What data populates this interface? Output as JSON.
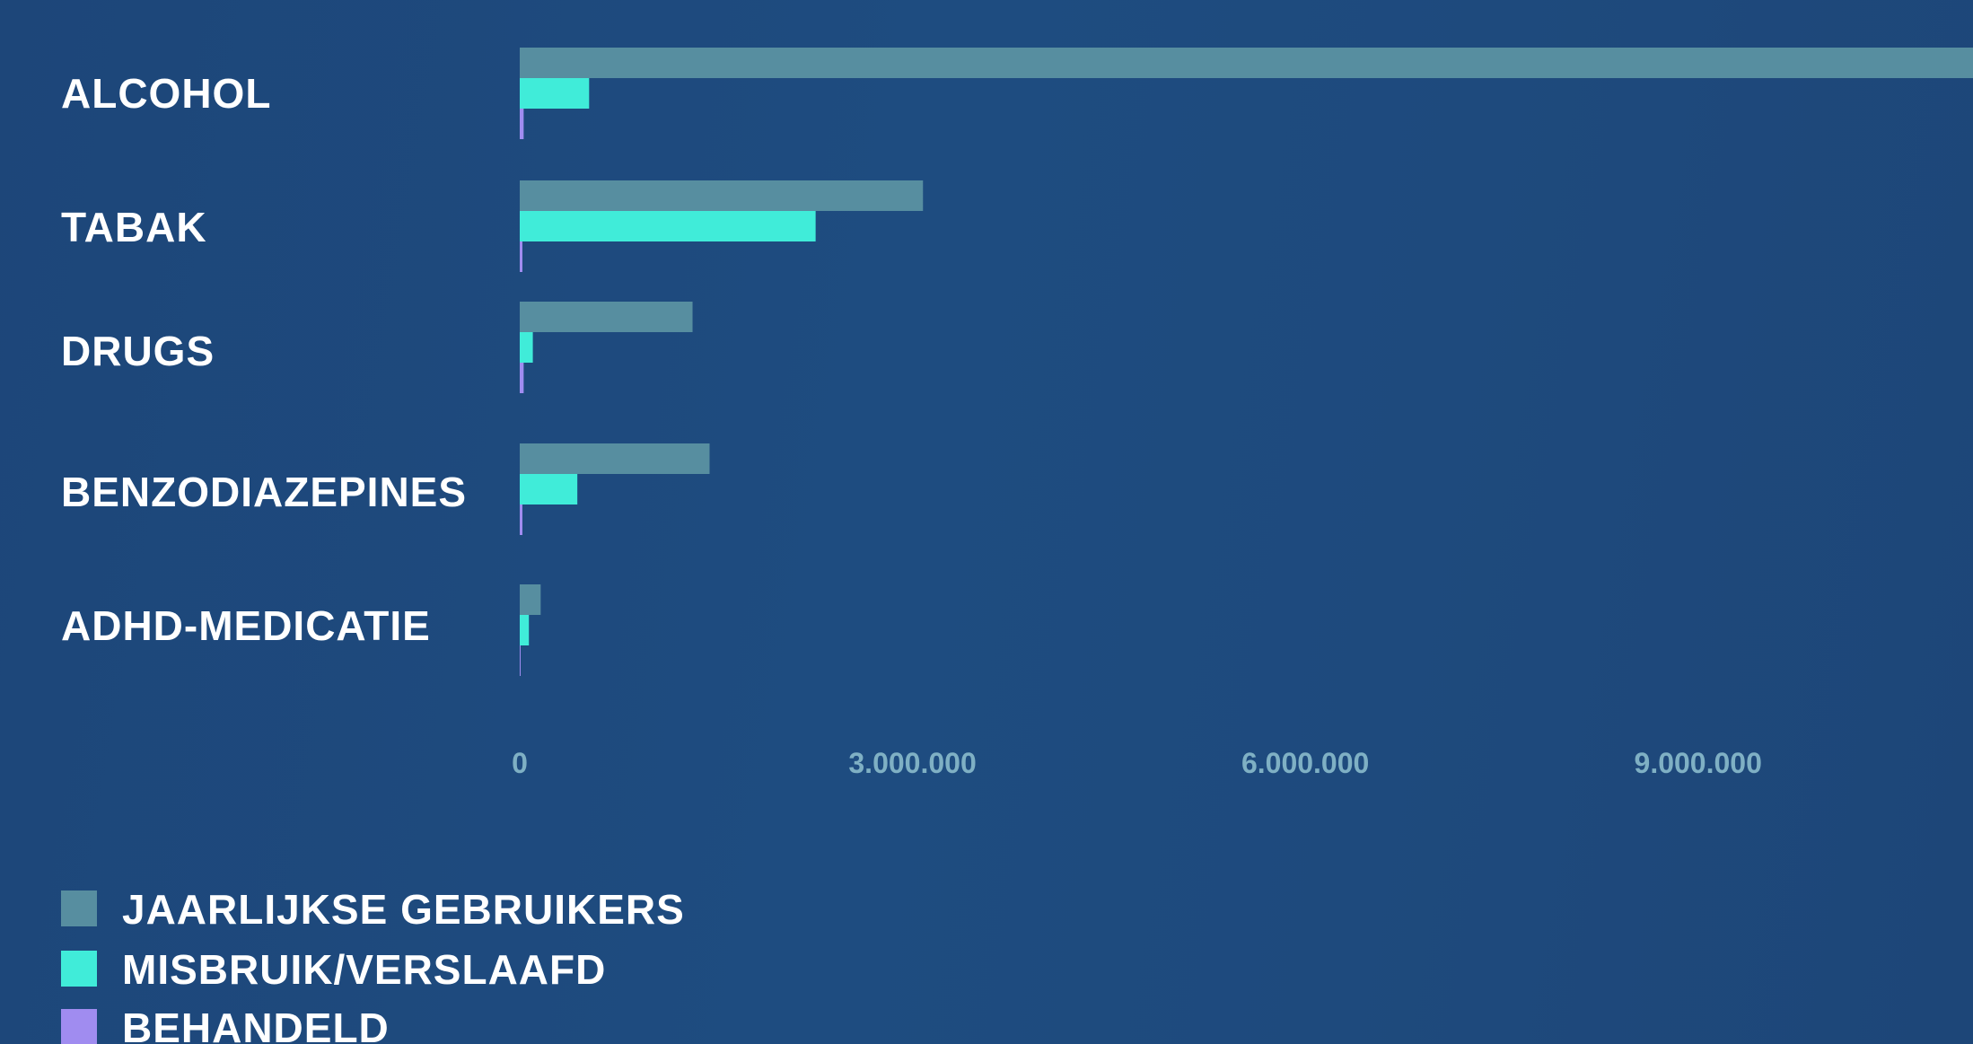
{
  "chart_data": {
    "type": "bar",
    "orientation": "horizontal",
    "categories": [
      "ALCOHOL",
      "TABAK",
      "DRUGS",
      "BENZODIAZEPINES",
      "ADHD-MEDICATIE"
    ],
    "series": [
      {
        "name": "JAARLIJKSE GEBRUIKERS",
        "color": "#578ea0",
        "values": [
          11100000,
          3080000,
          1320000,
          1450000,
          160000
        ]
      },
      {
        "name": "MISBRUIK/VERSLAAFD",
        "color": "#40ecd9",
        "values": [
          530000,
          2260000,
          100000,
          440000,
          70000
        ]
      },
      {
        "name": "BEHANDELD",
        "color": "#a08cf0",
        "values": [
          30000,
          5000,
          30000,
          5000,
          0
        ]
      }
    ],
    "xlim": [
      0,
      11100000
    ],
    "xticks": [
      {
        "value": 0,
        "label": "0"
      },
      {
        "value": 3000000,
        "label": "3.000.000"
      },
      {
        "value": 6000000,
        "label": "6.000.000"
      },
      {
        "value": 9000000,
        "label": "9.000.000"
      }
    ],
    "grid": false,
    "legend_position": "bottom-left"
  }
}
